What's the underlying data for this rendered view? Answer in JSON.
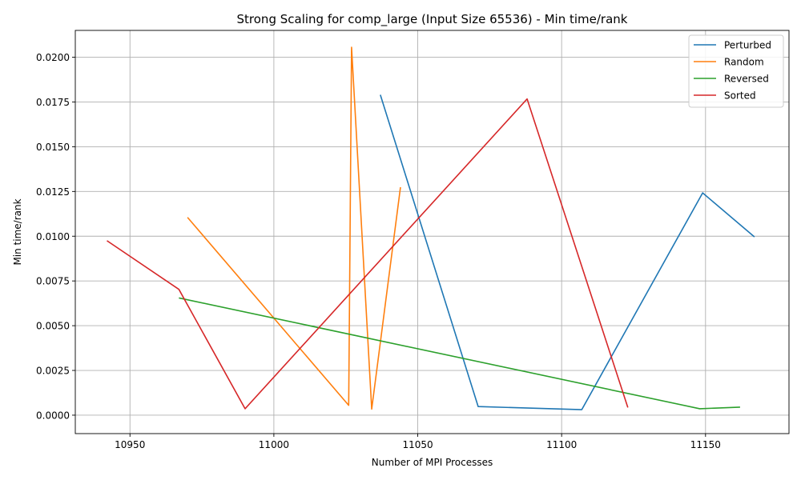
{
  "chart_data": {
    "type": "line",
    "title": "Strong Scaling for comp_large (Input Size 65536) - Min time/rank",
    "xlabel": "Number of MPI Processes",
    "ylabel": "Min time/rank",
    "xlim": [
      10931,
      11179
    ],
    "ylim": [
      -0.00103,
      0.0215
    ],
    "xticks": [
      10950,
      11000,
      11050,
      11100,
      11150
    ],
    "xtick_labels": [
      "10950",
      "11000",
      "11050",
      "11100",
      "11150"
    ],
    "yticks": [
      0.0,
      0.0025,
      0.005,
      0.0075,
      0.01,
      0.0125,
      0.015,
      0.0175,
      0.02
    ],
    "ytick_labels": [
      "0.0000",
      "0.0025",
      "0.0050",
      "0.0075",
      "0.0100",
      "0.0125",
      "0.0150",
      "0.0175",
      "0.0200"
    ],
    "grid": true,
    "legend_position": "top-right",
    "series": [
      {
        "name": "Perturbed",
        "color": "#1f77b4",
        "points": [
          [
            11037,
            0.0179
          ],
          [
            11071,
            0.00048
          ],
          [
            11107,
            0.00031
          ],
          [
            11149,
            0.01242
          ],
          [
            11167,
            0.00996
          ]
        ]
      },
      {
        "name": "Random",
        "color": "#ff7f0e",
        "points": [
          [
            10970,
            0.01105
          ],
          [
            11026,
            0.00055
          ],
          [
            11027,
            0.02056
          ],
          [
            11034,
            0.00034
          ],
          [
            11044,
            0.01274
          ]
        ]
      },
      {
        "name": "Reversed",
        "color": "#2ca02c",
        "points": [
          [
            10967,
            0.00655
          ],
          [
            11148,
            0.00036
          ],
          [
            11162,
            0.00045
          ]
        ]
      },
      {
        "name": "Sorted",
        "color": "#d62728",
        "points": [
          [
            10942,
            0.00975
          ],
          [
            10967,
            0.00703
          ],
          [
            10990,
            0.00036
          ],
          [
            11088,
            0.01767
          ],
          [
            11123,
            0.00043
          ]
        ]
      }
    ]
  }
}
